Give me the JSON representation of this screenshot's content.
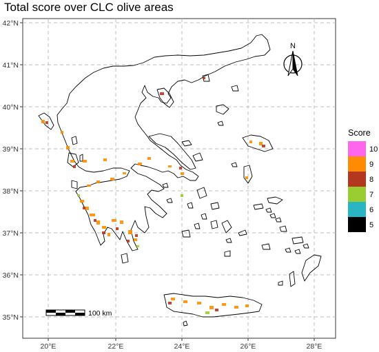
{
  "title": "Total score over CLC olive areas",
  "map": {
    "lat_ticks": [
      "42°N",
      "41°N",
      "40°N",
      "39°N",
      "38°N",
      "37°N",
      "36°N",
      "35°N"
    ],
    "lon_ticks": [
      "20°E",
      "22°E",
      "24°E",
      "26°E",
      "28°E"
    ],
    "grid": true,
    "background": "#ffffff",
    "coastline_color": "#000000",
    "grid_color": "#bdbdbd"
  },
  "north_arrow": {
    "label": "N",
    "icon": "north-arrow-icon"
  },
  "scale_bar": {
    "label": "100 km"
  },
  "legend": {
    "title": "Score",
    "items": [
      {
        "label": "10",
        "color": "#ff66ee"
      },
      {
        "label": "9",
        "color": "#ff8c00"
      },
      {
        "label": "8",
        "color": "#b5361f"
      },
      {
        "label": "7",
        "color": "#9acd32"
      },
      {
        "label": "6",
        "color": "#2ab5c2"
      },
      {
        "label": "5",
        "color": "#000000"
      }
    ]
  }
}
